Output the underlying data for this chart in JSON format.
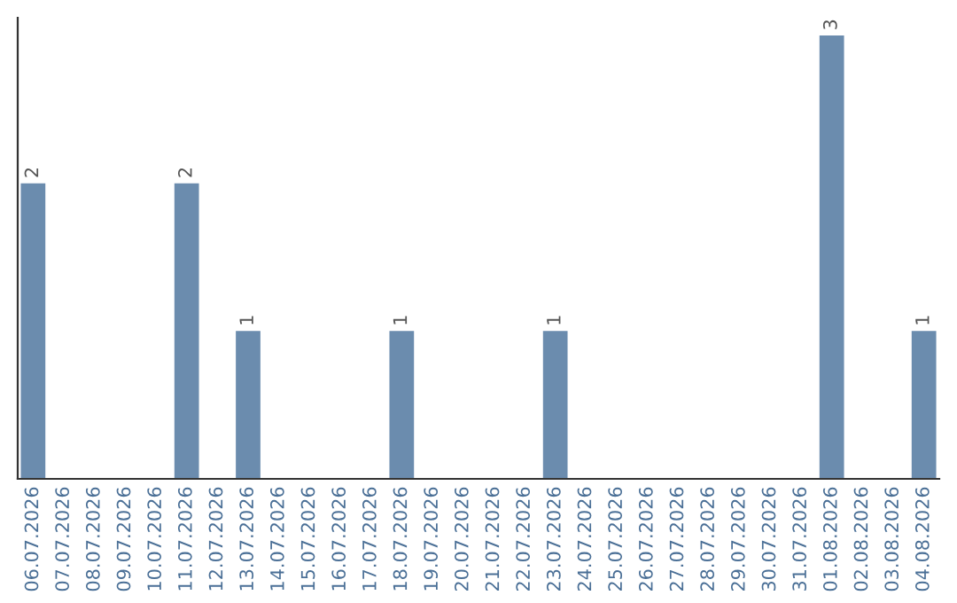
{
  "chart_data": {
    "type": "bar",
    "categories": [
      "06.07.2026",
      "07.07.2026",
      "08.07.2026",
      "09.07.2026",
      "10.07.2026",
      "11.07.2026",
      "12.07.2026",
      "13.07.2026",
      "14.07.2026",
      "15.07.2026",
      "16.07.2026",
      "17.07.2026",
      "18.07.2026",
      "19.07.2026",
      "20.07.2026",
      "21.07.2026",
      "22.07.2026",
      "23.07.2026",
      "24.07.2026",
      "25.07.2026",
      "26.07.2026",
      "27.07.2026",
      "28.07.2026",
      "29.07.2026",
      "30.07.2026",
      "31.07.2026",
      "01.08.2026",
      "02.08.2026",
      "03.08.2026",
      "04.08.2026"
    ],
    "values": [
      2,
      0,
      0,
      0,
      0,
      2,
      0,
      1,
      0,
      0,
      0,
      0,
      1,
      0,
      0,
      0,
      0,
      1,
      0,
      0,
      0,
      0,
      0,
      0,
      0,
      0,
      3,
      0,
      0,
      1
    ],
    "value_labels": [
      "2",
      null,
      null,
      null,
      null,
      "2",
      null,
      "1",
      null,
      null,
      null,
      null,
      "1",
      null,
      null,
      null,
      null,
      "1",
      null,
      null,
      null,
      null,
      null,
      null,
      null,
      null,
      "3",
      null,
      null,
      "1"
    ],
    "color": "#6b8cae",
    "tick_labels": "x",
    "grid": false,
    "legend": false
  }
}
